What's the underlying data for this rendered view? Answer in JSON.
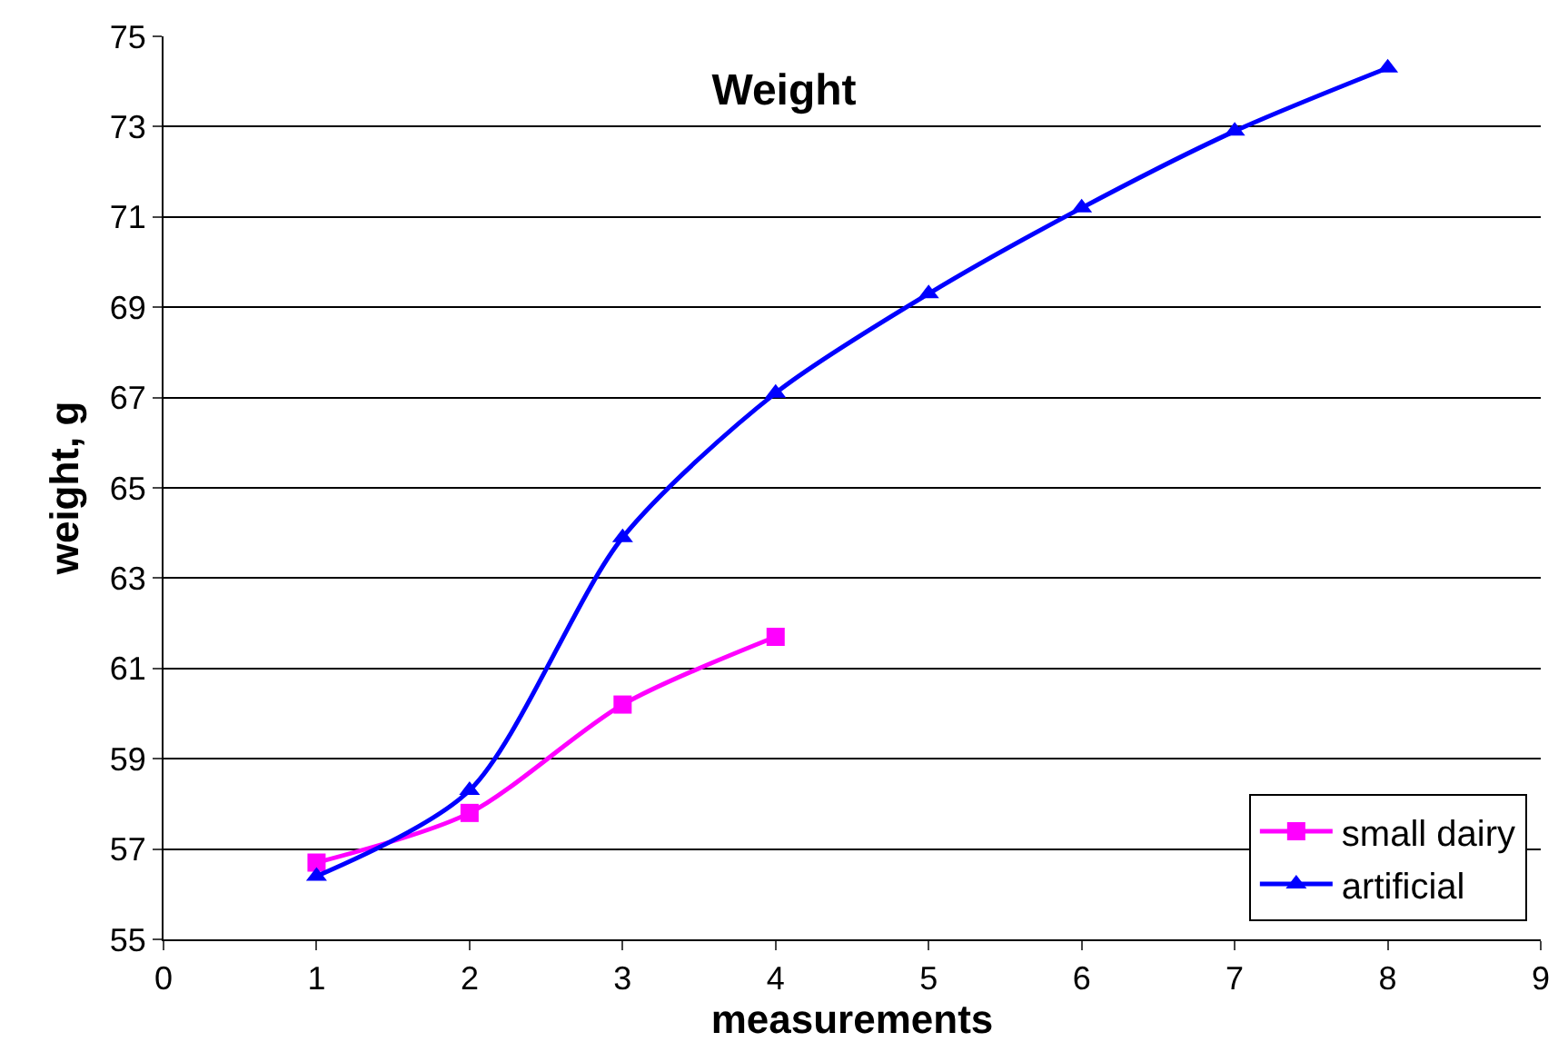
{
  "chart_data": {
    "type": "line",
    "title": "Weight",
    "xlabel": "measurements",
    "ylabel": "weight, g",
    "x": [
      1,
      2,
      3,
      4,
      5,
      6,
      7,
      8
    ],
    "series": [
      {
        "name": "small dairy",
        "color": "#ff00ff",
        "marker": "square",
        "values": [
          56.7,
          57.8,
          60.2,
          61.7,
          null,
          null,
          null,
          null
        ]
      },
      {
        "name": "artificial",
        "color": "#0000ff",
        "marker": "triangle",
        "values": [
          56.4,
          58.3,
          63.9,
          67.1,
          69.3,
          71.2,
          72.9,
          74.3
        ]
      }
    ],
    "xlim": [
      0,
      9
    ],
    "xticks": [
      0,
      1,
      2,
      3,
      4,
      5,
      6,
      7,
      8,
      9
    ],
    "ylim": [
      55,
      75
    ],
    "yticks": [
      55,
      57,
      59,
      61,
      63,
      65,
      67,
      69,
      71,
      73,
      75
    ],
    "grid": "y",
    "legend": "bottom right",
    "line_style": "solid"
  }
}
